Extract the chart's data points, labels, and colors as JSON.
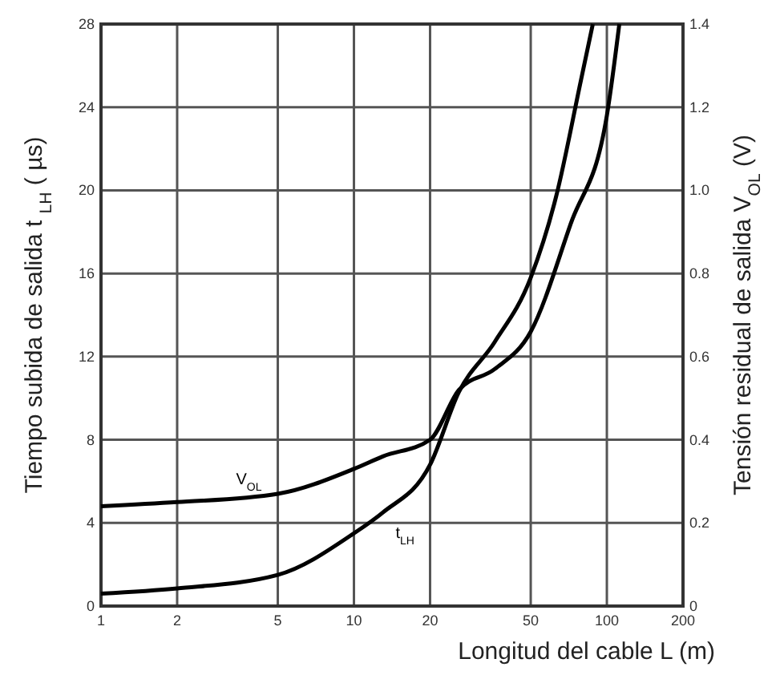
{
  "chart_data": {
    "type": "line",
    "xlabel": "Longitud del cable L (m)",
    "ylabel": "Tiempo subida de salida  t $_{LH}$ ( µs)",
    "y2label": "Tensión residual de salida V$_{OL}$ (V)",
    "log": "x",
    "xlim": [
      1,
      200
    ],
    "xticks": [
      1,
      2,
      5,
      10,
      20,
      50,
      100,
      200
    ],
    "ylim": [
      0,
      28
    ],
    "yticks": [
      0,
      4,
      8,
      12,
      16,
      20,
      24,
      28
    ],
    "y2lim": [
      0,
      1.4
    ],
    "y2ticks": [
      0,
      {
        "value": 0.2,
        "label": "0.2"
      },
      {
        "value": 0.4,
        "label": "0.4"
      },
      {
        "value": 0.6,
        "label": "0.6"
      },
      {
        "value": 0.8,
        "label": "0.8"
      },
      {
        "value": 1,
        "label": "1.0"
      },
      {
        "value": 1.2,
        "label": "1.2"
      },
      {
        "value": 1.4,
        "label": "1.4"
      }
    ],
    "grid": true,
    "line_style": "solid",
    "marker": "none",
    "series": [
      {
        "name": "V$_{OL}$",
        "color": "#000000",
        "axis": "y2",
        "x": [
          1,
          2,
          5,
          10,
          13,
          20,
          26,
          36,
          50,
          72,
          100,
          112
        ],
        "values": [
          0.24,
          0.25,
          0.27,
          0.33,
          0.36,
          0.4,
          0.52,
          0.57,
          0.66,
          0.92,
          1.18,
          1.4
        ]
      },
      {
        "name": "t$_{LH}$",
        "color": "#000000",
        "axis": "y",
        "x": [
          1,
          2,
          5,
          10,
          13,
          20,
          26,
          36,
          50,
          63,
          79,
          88
        ],
        "values": [
          0.6,
          0.85,
          1.5,
          3.5,
          4.5,
          6.8,
          10.3,
          12.7,
          15.8,
          19.7,
          25.3,
          28
        ]
      }
    ]
  }
}
